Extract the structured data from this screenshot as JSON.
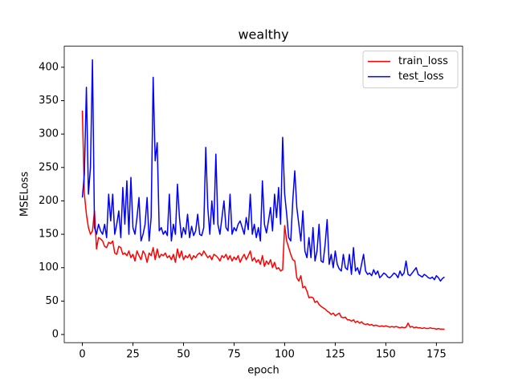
{
  "chart_data": {
    "type": "line",
    "title": "wealthy",
    "x_label": "epoch",
    "y_label": "MSELoss",
    "x": [
      0,
      1,
      2,
      3,
      4,
      5,
      6,
      7,
      8,
      9,
      10,
      11,
      12,
      13,
      14,
      15,
      16,
      17,
      18,
      19,
      20,
      21,
      22,
      23,
      24,
      25,
      26,
      27,
      28,
      29,
      30,
      31,
      32,
      33,
      34,
      35,
      36,
      37,
      38,
      39,
      40,
      41,
      42,
      43,
      44,
      45,
      46,
      47,
      48,
      49,
      50,
      51,
      52,
      53,
      54,
      55,
      56,
      57,
      58,
      59,
      60,
      61,
      62,
      63,
      64,
      65,
      66,
      67,
      68,
      69,
      70,
      71,
      72,
      73,
      74,
      75,
      76,
      77,
      78,
      79,
      80,
      81,
      82,
      83,
      84,
      85,
      86,
      87,
      88,
      89,
      90,
      91,
      92,
      93,
      94,
      95,
      96,
      97,
      98,
      99,
      100,
      101,
      102,
      103,
      104,
      105,
      106,
      107,
      108,
      109,
      110,
      111,
      112,
      113,
      114,
      115,
      116,
      117,
      118,
      119,
      120,
      121,
      122,
      123,
      124,
      125,
      126,
      127,
      128,
      129,
      130,
      131,
      132,
      133,
      134,
      135,
      136,
      137,
      138,
      139,
      140,
      141,
      142,
      143,
      144,
      145,
      146,
      147,
      148,
      149,
      150,
      151,
      152,
      153,
      154,
      155,
      156,
      157,
      158,
      159,
      160,
      161,
      162,
      163,
      164,
      165,
      166,
      167,
      168,
      169,
      170,
      171,
      172,
      173,
      174,
      175,
      176,
      177,
      178,
      179
    ],
    "series": [
      {
        "name": "train_loss",
        "color": "#ff0000",
        "values": [
          335,
          210,
          180,
          160,
          150,
          155,
          185,
          128,
          145,
          143,
          140,
          132,
          130,
          138,
          136,
          140,
          122,
          120,
          132,
          130,
          120,
          122,
          118,
          125,
          115,
          120,
          110,
          125,
          118,
          112,
          125,
          120,
          108,
          122,
          118,
          130,
          112,
          128,
          115,
          120,
          118,
          122,
          115,
          118,
          112,
          120,
          108,
          128,
          115,
          125,
          112,
          118,
          115,
          120,
          112,
          118,
          115,
          120,
          122,
          118,
          125,
          120,
          115,
          118,
          112,
          120,
          118,
          115,
          110,
          118,
          115,
          120,
          112,
          118,
          110,
          116,
          112,
          118,
          108,
          115,
          120,
          112,
          118,
          125,
          110,
          115,
          108,
          112,
          105,
          118,
          102,
          110,
          105,
          112,
          100,
          108,
          98,
          100,
          95,
          97,
          163,
          140,
          130,
          120,
          112,
          110,
          85,
          80,
          88,
          70,
          72,
          65,
          55,
          56,
          55,
          48,
          50,
          45,
          42,
          40,
          38,
          35,
          33,
          30,
          32,
          28,
          30,
          32,
          26,
          25,
          26,
          22,
          22,
          20,
          22,
          18,
          20,
          17,
          19,
          16,
          15,
          16,
          14,
          15,
          13,
          14,
          13,
          12,
          13,
          12,
          13,
          12,
          11,
          12,
          11,
          12,
          11,
          10,
          11,
          10,
          11,
          17,
          11,
          12,
          10,
          11,
          10,
          10,
          9,
          10,
          9,
          9,
          10,
          9,
          9,
          8,
          9,
          8,
          8,
          8
        ]
      },
      {
        "name": "test_loss",
        "color": "#0000ff",
        "values": [
          205,
          240,
          370,
          210,
          250,
          411,
          160,
          150,
          165,
          155,
          150,
          165,
          145,
          210,
          170,
          210,
          150,
          165,
          185,
          145,
          220,
          165,
          230,
          150,
          235,
          160,
          150,
          175,
          205,
          140,
          150,
          165,
          205,
          140,
          175,
          385,
          260,
          287,
          155,
          160,
          150,
          155,
          148,
          210,
          140,
          165,
          150,
          225,
          175,
          145,
          160,
          150,
          180,
          145,
          162,
          148,
          155,
          180,
          150,
          148,
          160,
          280,
          190,
          150,
          200,
          165,
          270,
          165,
          150,
          175,
          200,
          160,
          155,
          210,
          150,
          160,
          155,
          165,
          170,
          160,
          150,
          175,
          157,
          210,
          150,
          165,
          145,
          160,
          140,
          230,
          165,
          152,
          170,
          190,
          155,
          210,
          175,
          220,
          165,
          295,
          210,
          180,
          145,
          140,
          200,
          245,
          190,
          165,
          140,
          185,
          125,
          115,
          145,
          115,
          160,
          110,
          125,
          165,
          110,
          108,
          135,
          172,
          105,
          120,
          100,
          125,
          105,
          98,
          95,
          120,
          100,
          97,
          120,
          90,
          130,
          95,
          100,
          90,
          105,
          120,
          95,
          90,
          92,
          88,
          97,
          90,
          95,
          85,
          88,
          92,
          90,
          86,
          85,
          88,
          92,
          90,
          85,
          95,
          88,
          92,
          110,
          90,
          88,
          92,
          96,
          100,
          90,
          88,
          86,
          90,
          88,
          85,
          84,
          86,
          82,
          88,
          85,
          80,
          84,
          86
        ]
      }
    ],
    "xlim": [
      -8.95,
      187.95
    ],
    "xticks": [
      0,
      25,
      50,
      75,
      100,
      125,
      150,
      175
    ],
    "ylim": [
      -12.2,
      431.5
    ],
    "yticks": [
      0,
      50,
      100,
      150,
      200,
      250,
      300,
      350,
      400
    ],
    "legend": "upper right"
  }
}
